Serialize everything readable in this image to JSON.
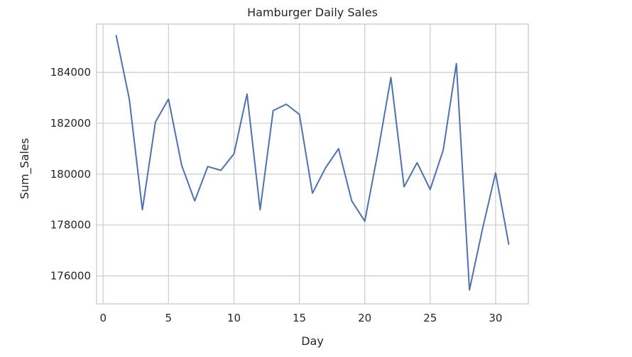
{
  "chart_data": {
    "type": "line",
    "title": "Hamburger Daily Sales",
    "xlabel": "Day",
    "ylabel": "Sum_Sales",
    "xlim": [
      -0.5,
      32.5
    ],
    "ylim": [
      174900,
      185900
    ],
    "xticks": [
      0,
      5,
      10,
      15,
      20,
      25,
      30
    ],
    "yticks": [
      176000,
      178000,
      180000,
      182000,
      184000
    ],
    "grid": true,
    "legend": "none",
    "series": [
      {
        "color": "#4c72b0",
        "x": [
          1,
          2,
          3,
          4,
          5,
          6,
          7,
          8,
          9,
          10,
          11,
          12,
          13,
          14,
          15,
          16,
          17,
          18,
          19,
          20,
          21,
          22,
          23,
          24,
          25,
          26,
          27,
          28,
          29,
          30,
          31
        ],
        "values": [
          185450,
          182950,
          178600,
          182050,
          182950,
          180350,
          178950,
          180300,
          180150,
          180800,
          183150,
          178600,
          182500,
          182750,
          182350,
          179250,
          180250,
          181000,
          178950,
          178150,
          180850,
          183800,
          179500,
          180450,
          179400,
          180950,
          184350,
          175450,
          177850,
          180050,
          177250
        ]
      }
    ]
  }
}
